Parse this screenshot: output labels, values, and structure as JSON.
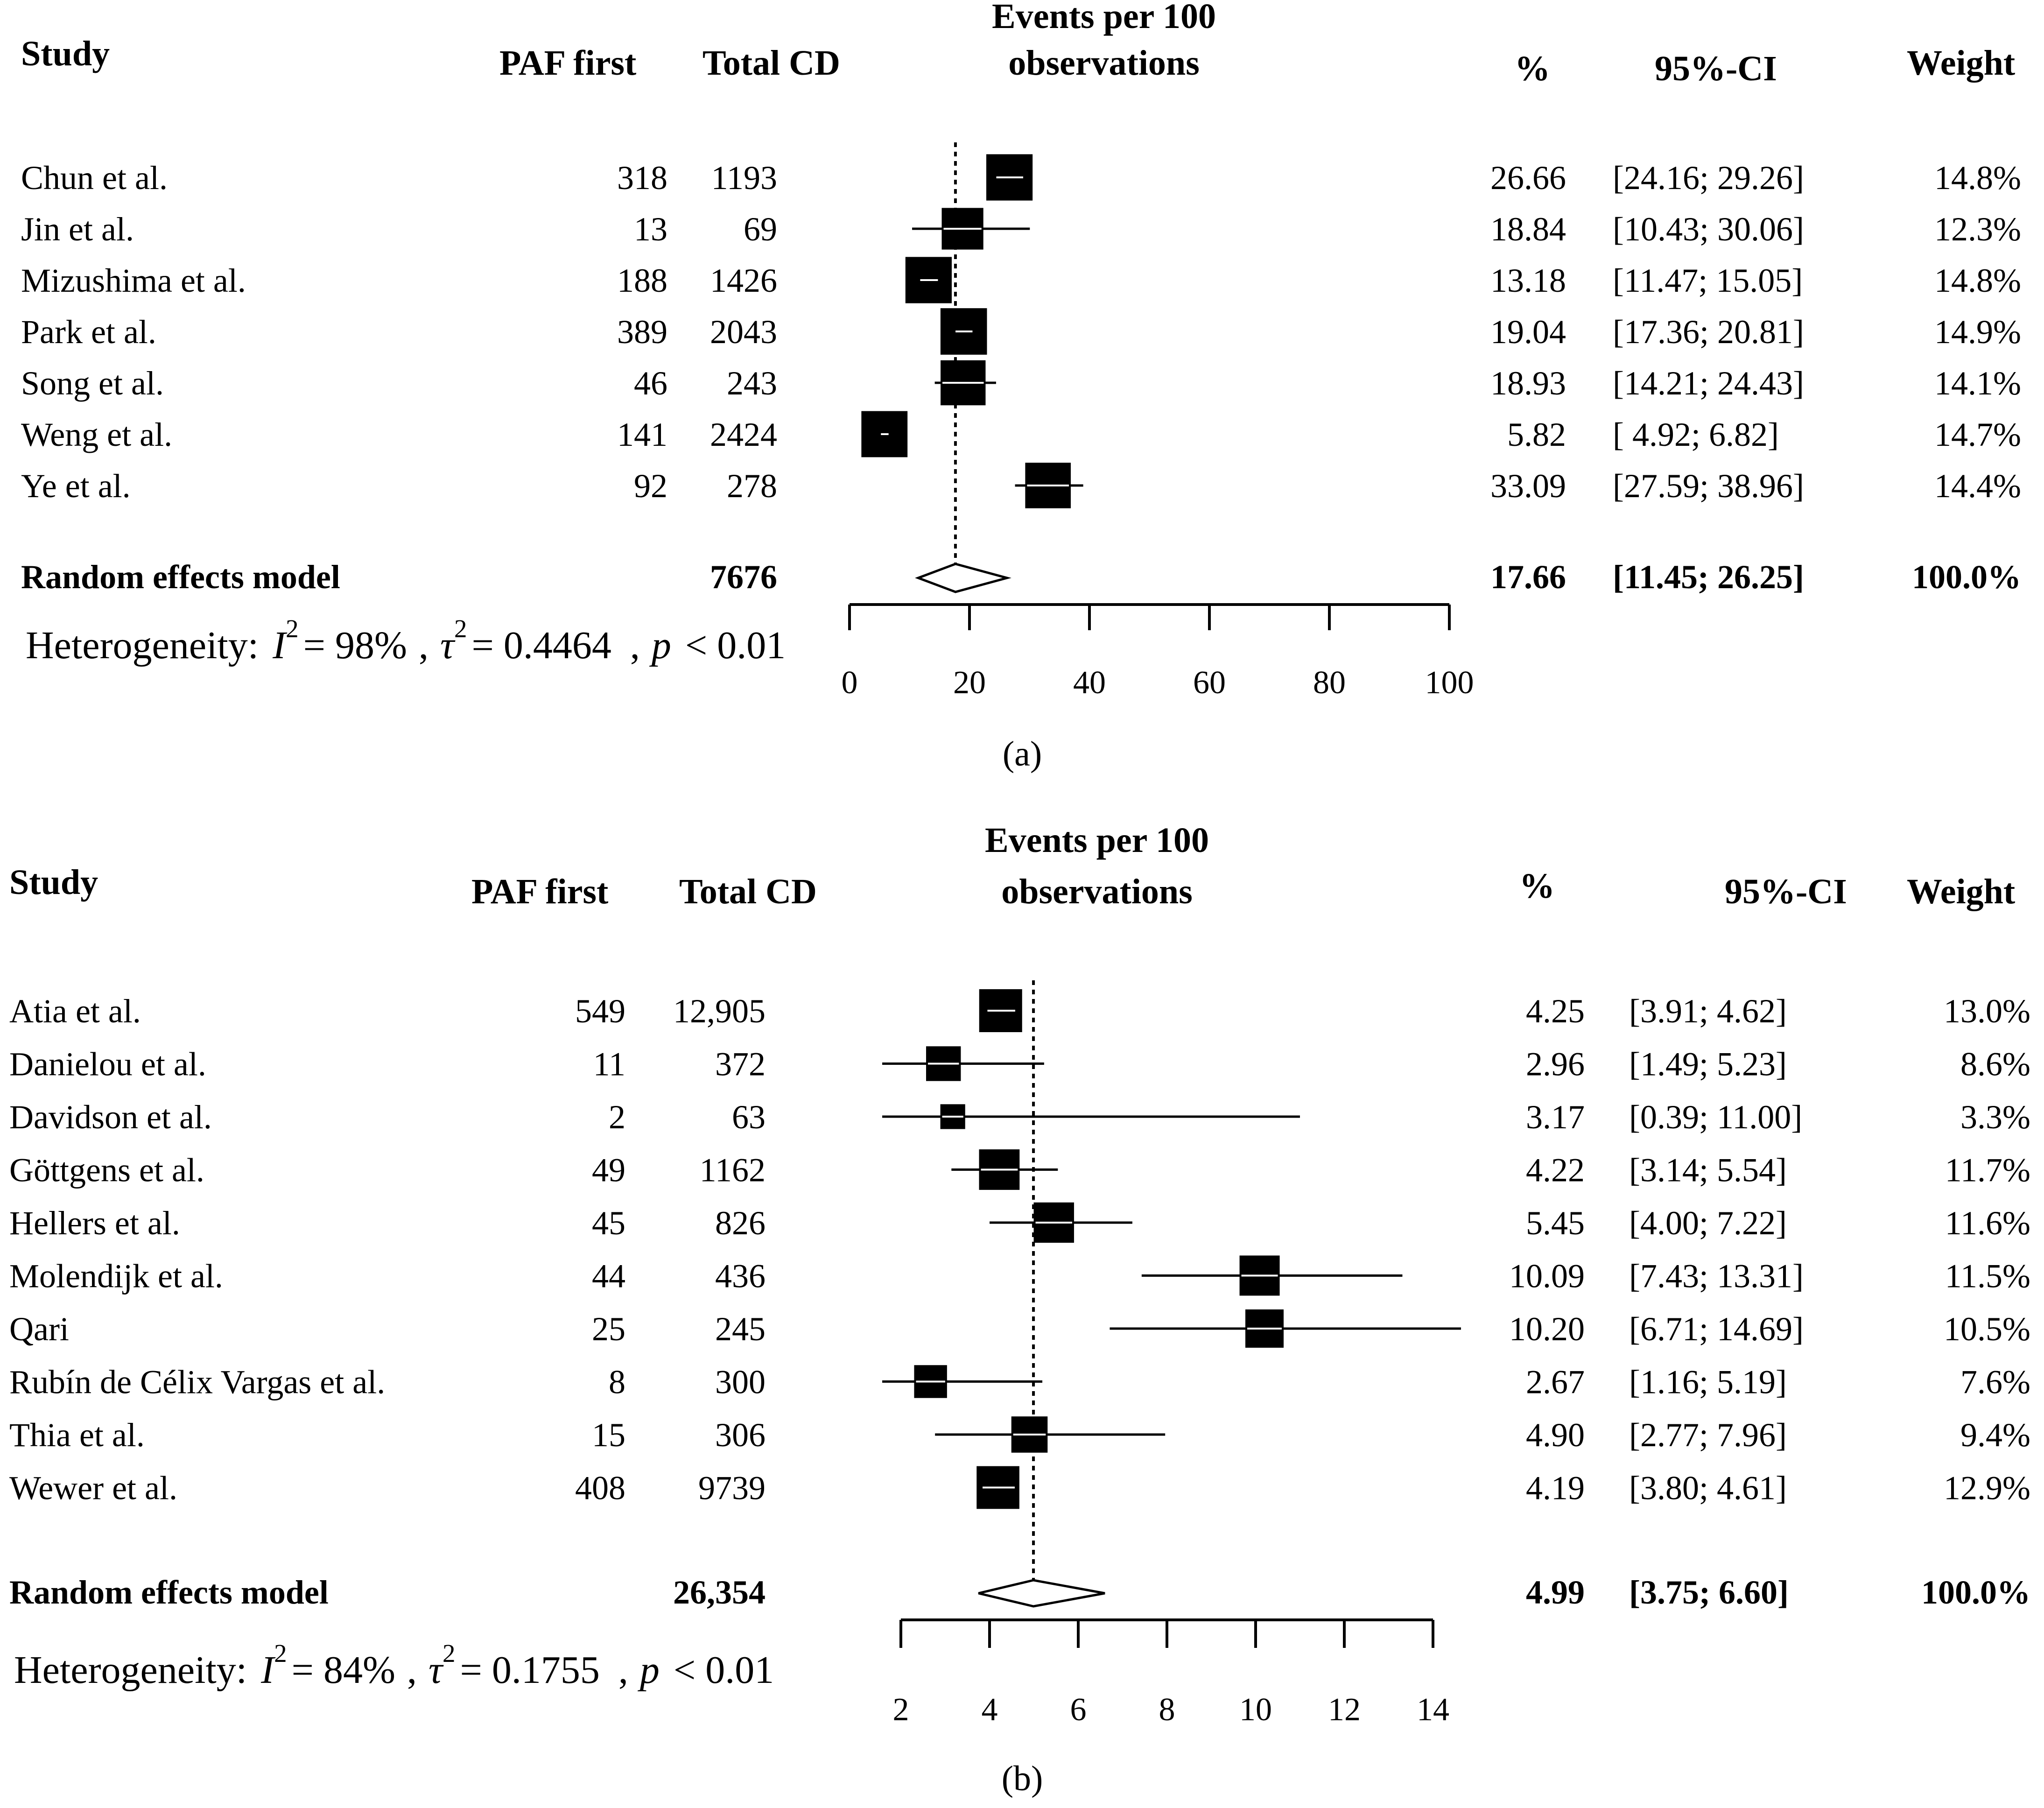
{
  "chart_data": [
    {
      "type": "forest",
      "panel_label": "(a)",
      "headers": {
        "study": "Study",
        "events": "PAF first",
        "total": "Total CD",
        "plot_title_line1": "Events per 100",
        "plot_title_line2": "observations",
        "pct": "%",
        "ci": "95%-CI",
        "weight": "Weight"
      },
      "studies": [
        {
          "name": "Chun et al.",
          "events": "318",
          "total": "1193",
          "est": 26.66,
          "lo": 24.16,
          "hi": 29.26,
          "est_label": "26.66",
          "ci_label": "[24.16; 29.26]",
          "weight_label": "14.8%",
          "weight": 14.8
        },
        {
          "name": "Jin et al.",
          "events": "13",
          "total": "69",
          "est": 18.84,
          "lo": 10.43,
          "hi": 30.06,
          "est_label": "18.84",
          "ci_label": "[10.43; 30.06]",
          "weight_label": "12.3%",
          "weight": 12.3
        },
        {
          "name": "Mizushima et al.",
          "events": "188",
          "total": "1426",
          "est": 13.18,
          "lo": 11.47,
          "hi": 15.05,
          "est_label": "13.18",
          "ci_label": "[11.47; 15.05]",
          "weight_label": "14.8%",
          "weight": 14.8
        },
        {
          "name": "Park et al.",
          "events": "389",
          "total": "2043",
          "est": 19.04,
          "lo": 17.36,
          "hi": 20.81,
          "est_label": "19.04",
          "ci_label": "[17.36; 20.81]",
          "weight_label": "14.9%",
          "weight": 14.9
        },
        {
          "name": "Song et al.",
          "events": "46",
          "total": "243",
          "est": 18.93,
          "lo": 14.21,
          "hi": 24.43,
          "est_label": "18.93",
          "ci_label": "[14.21; 24.43]",
          "weight_label": "14.1%",
          "weight": 14.1
        },
        {
          "name": "Weng et al.",
          "events": "141",
          "total": "2424",
          "est": 5.82,
          "lo": 4.92,
          "hi": 6.82,
          "est_label": "5.82",
          "ci_label": "[ 4.92; 6.82]",
          "weight_label": "14.7%",
          "weight": 14.7
        },
        {
          "name": "Ye et al.",
          "events": "92",
          "total": "278",
          "est": 33.09,
          "lo": 27.59,
          "hi": 38.96,
          "est_label": "33.09",
          "ci_label": "[27.59; 38.96]",
          "weight_label": "14.4%",
          "weight": 14.4
        }
      ],
      "summary": {
        "name": "Random effects model",
        "total": "7676",
        "est": 17.66,
        "lo": 11.45,
        "hi": 26.25,
        "est_label": "17.66",
        "ci_label": "[11.45; 26.25]",
        "weight_label": "100.0%"
      },
      "heterogeneity": {
        "label": "Heterogeneity:",
        "i2_symbol": "I",
        "sup": "2",
        "i2_value": "= 98%",
        "tau_symbol": "τ",
        "tau_value": "= 0.4464",
        "comma": ",",
        "p_symbol": "p",
        "p_value": "< 0.01"
      },
      "axis": {
        "min": 0,
        "max": 100,
        "ticks": [
          0,
          20,
          40,
          60,
          80,
          100
        ],
        "tick_labels": [
          "0",
          "20",
          "40",
          "60",
          "80",
          "100"
        ]
      },
      "reference_line": 17.66
    },
    {
      "type": "forest",
      "panel_label": "(b)",
      "headers": {
        "study": "Study",
        "events": "PAF first",
        "total": "Total CD",
        "plot_title_line1": "Events per 100",
        "plot_title_line2": "observations",
        "pct": "%",
        "ci": "95%-CI",
        "weight": "Weight"
      },
      "studies": [
        {
          "name": "Atia et al.",
          "events": "549",
          "total": "12,905",
          "est": 4.25,
          "lo": 3.91,
          "hi": 4.62,
          "est_label": "4.25",
          "ci_label": "[3.91; 4.62]",
          "weight_label": "13.0%",
          "weight": 13.0
        },
        {
          "name": "Danielou et al.",
          "events": "11",
          "total": "372",
          "est": 2.96,
          "lo": 1.49,
          "hi": 5.23,
          "est_label": "2.96",
          "ci_label": "[1.49; 5.23]",
          "weight_label": "8.6%",
          "weight": 8.6
        },
        {
          "name": "Davidson et al.",
          "events": "2",
          "total": "63",
          "est": 3.17,
          "lo": 0.39,
          "hi": 11.0,
          "est_label": "3.17",
          "ci_label": "[0.39; 11.00]",
          "weight_label": "3.3%",
          "weight": 3.3
        },
        {
          "name": "Göttgens et al.",
          "events": "49",
          "total": "1162",
          "est": 4.22,
          "lo": 3.14,
          "hi": 5.54,
          "est_label": "4.22",
          "ci_label": "[3.14; 5.54]",
          "weight_label": "11.7%",
          "weight": 11.7
        },
        {
          "name": "Hellers et al.",
          "events": "45",
          "total": "826",
          "est": 5.45,
          "lo": 4.0,
          "hi": 7.22,
          "est_label": "5.45",
          "ci_label": "[4.00; 7.22]",
          "weight_label": "11.6%",
          "weight": 11.6
        },
        {
          "name": "Molendijk et al.",
          "events": "44",
          "total": "436",
          "est": 10.09,
          "lo": 7.43,
          "hi": 13.31,
          "est_label": "10.09",
          "ci_label": "[7.43; 13.31]",
          "weight_label": "11.5%",
          "weight": 11.5
        },
        {
          "name": "Qari",
          "events": "25",
          "total": "245",
          "est": 10.2,
          "lo": 6.71,
          "hi": 14.69,
          "est_label": "10.20",
          "ci_label": "[6.71; 14.69]",
          "weight_label": "10.5%",
          "weight": 10.5
        },
        {
          "name": "Rubín de Célix Vargas et al.",
          "events": "8",
          "total": "300",
          "est": 2.67,
          "lo": 1.16,
          "hi": 5.19,
          "est_label": "2.67",
          "ci_label": "[1.16; 5.19]",
          "weight_label": "7.6%",
          "weight": 7.6
        },
        {
          "name": "Thia et al.",
          "events": "15",
          "total": "306",
          "est": 4.9,
          "lo": 2.77,
          "hi": 7.96,
          "est_label": "4.90",
          "ci_label": "[2.77; 7.96]",
          "weight_label": "9.4%",
          "weight": 9.4
        },
        {
          "name": "Wewer et al.",
          "events": "408",
          "total": "9739",
          "est": 4.19,
          "lo": 3.8,
          "hi": 4.61,
          "est_label": "4.19",
          "ci_label": "[3.80; 4.61]",
          "weight_label": "12.9%",
          "weight": 12.9
        }
      ],
      "summary": {
        "name": "Random effects model",
        "total": "26,354",
        "est": 4.99,
        "lo": 3.75,
        "hi": 6.6,
        "est_label": "4.99",
        "ci_label": "[3.75; 6.60]",
        "weight_label": "100.0%"
      },
      "heterogeneity": {
        "label": "Heterogeneity:",
        "i2_symbol": "I",
        "sup": "2",
        "i2_value": "= 84%",
        "tau_symbol": "τ",
        "tau_value": "= 0.1755",
        "comma": ",",
        "p_symbol": "p",
        "p_value": "< 0.01"
      },
      "axis": {
        "min": 2,
        "max": 14,
        "ticks": [
          2,
          4,
          6,
          8,
          10,
          12,
          14
        ],
        "tick_labels": [
          "2",
          "4",
          "6",
          "8",
          "10",
          "12",
          "14"
        ]
      },
      "reference_line": 4.99
    }
  ]
}
